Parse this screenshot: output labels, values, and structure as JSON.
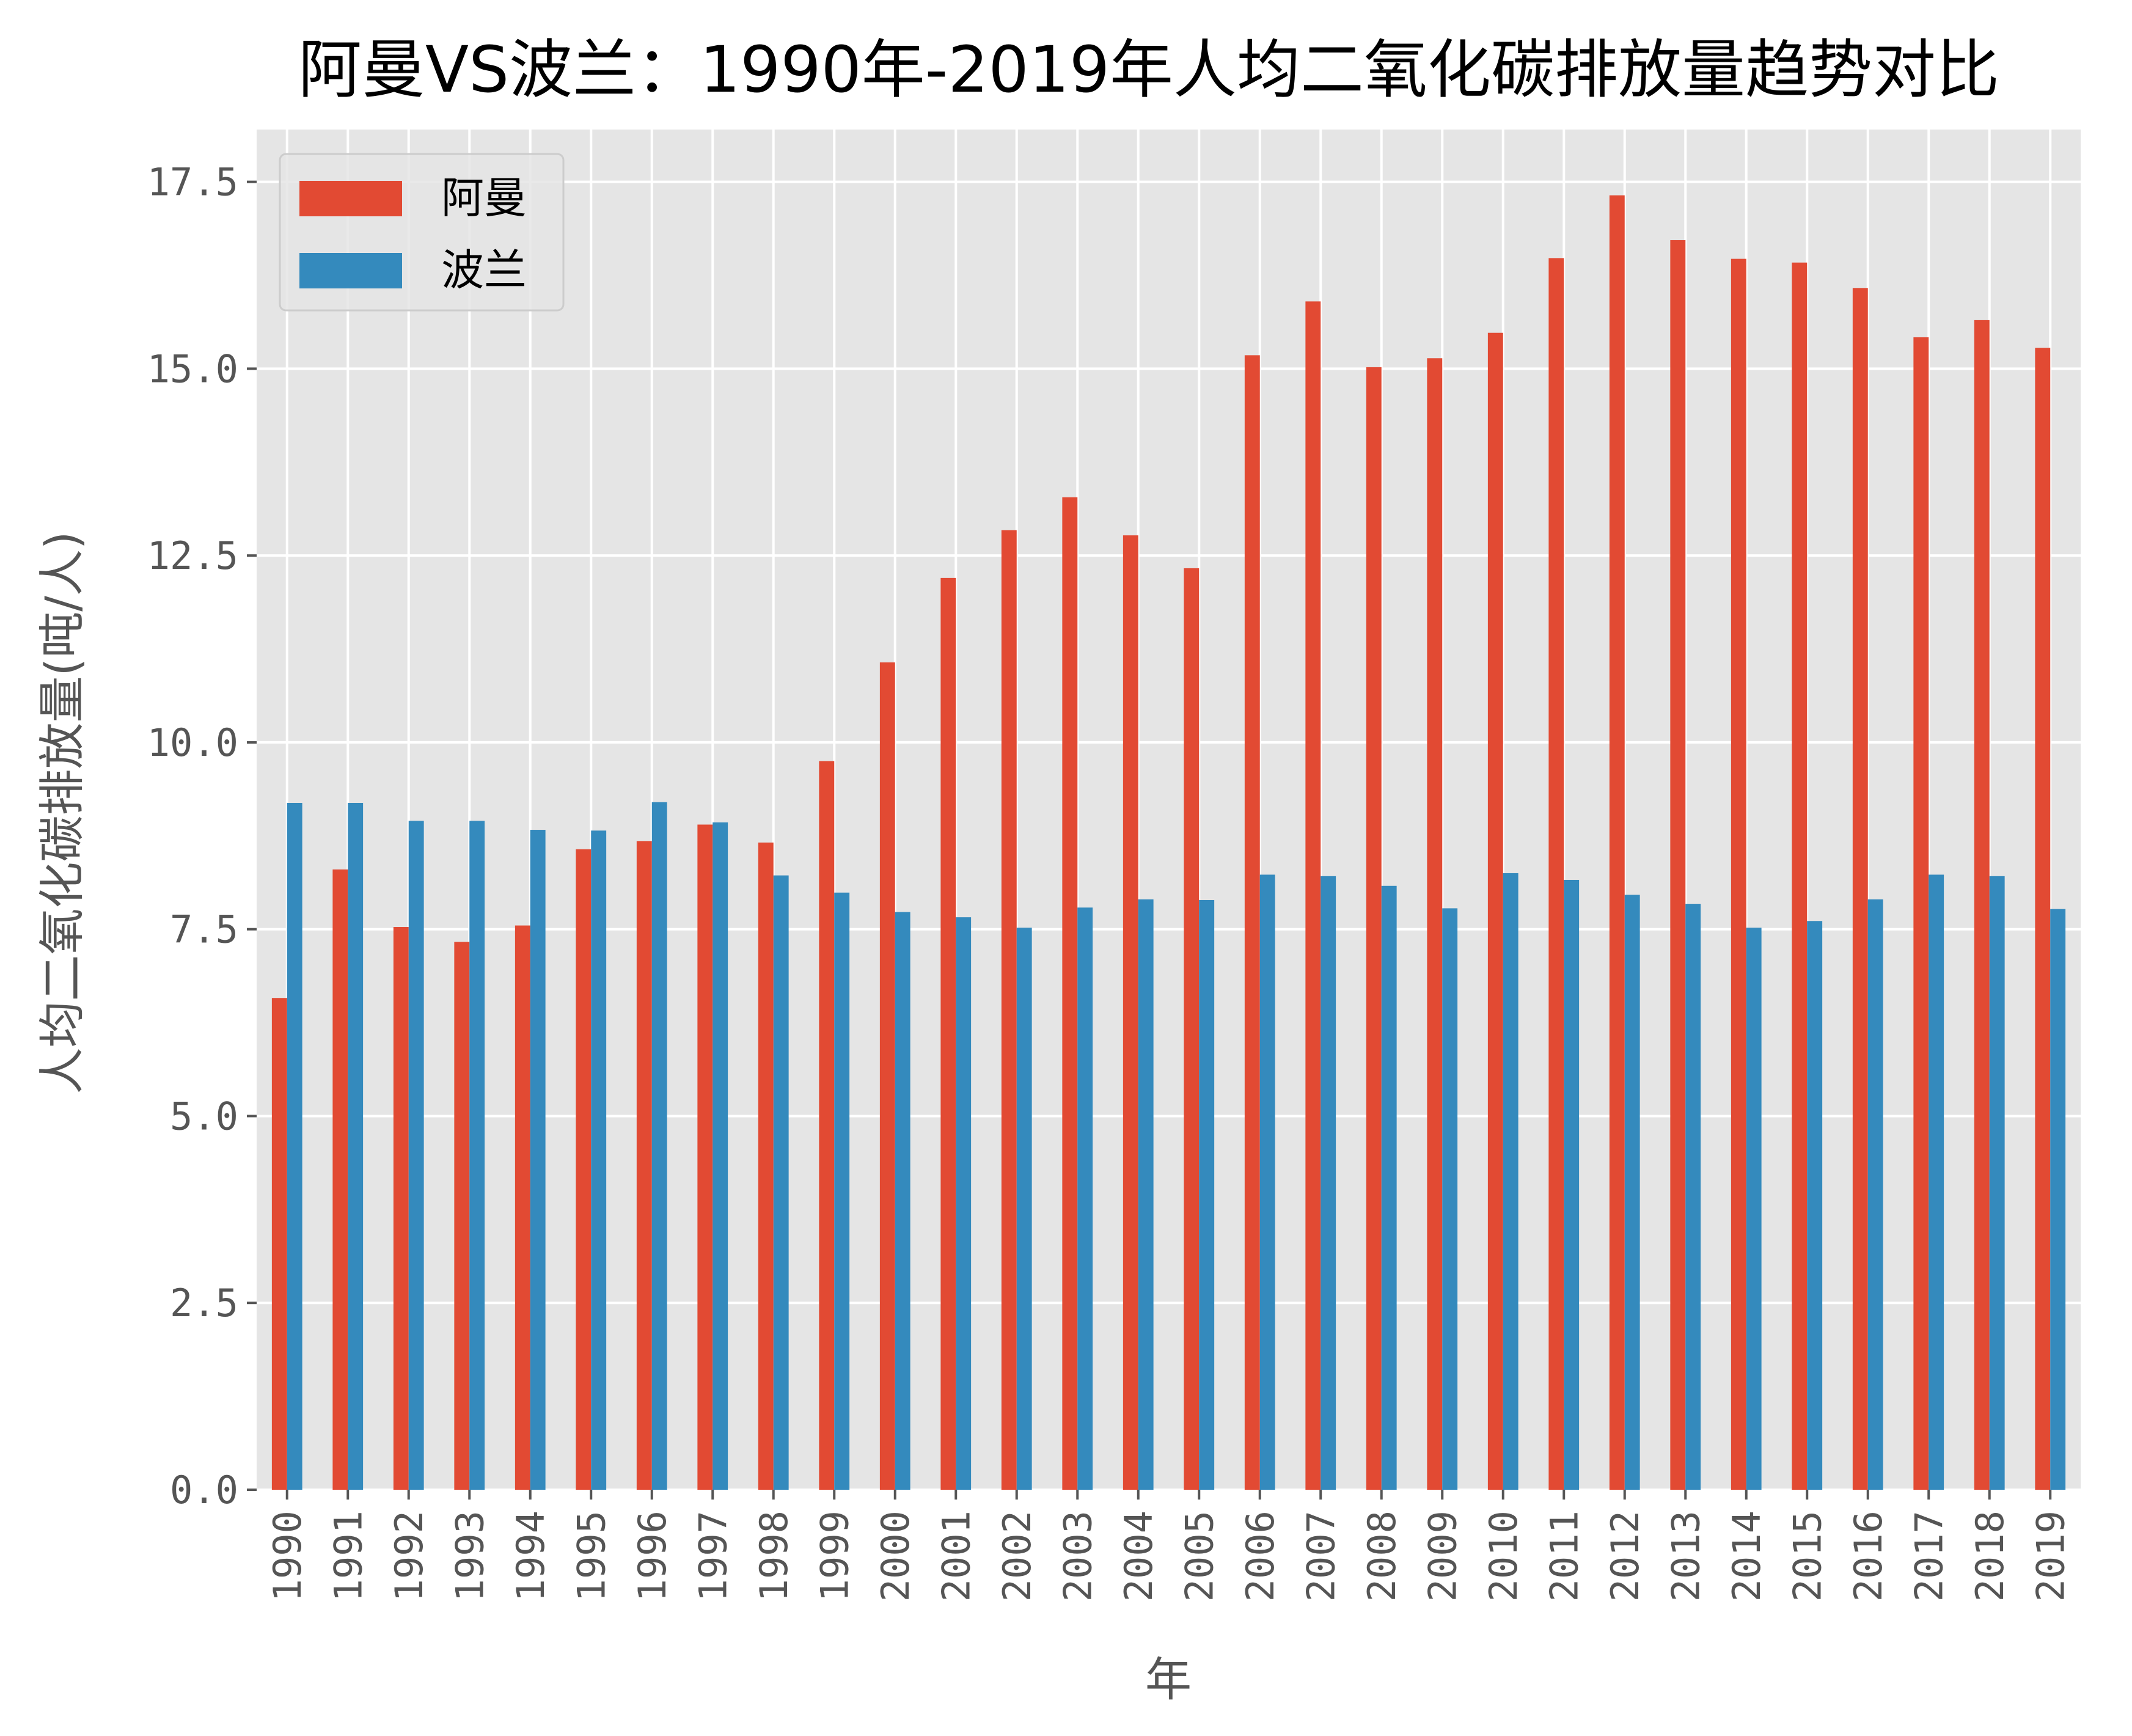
{
  "chart_data": {
    "type": "bar",
    "title": "阿曼VS波兰：1990年-2019年人均二氧化碳排放量趋势对比",
    "xlabel": "年",
    "ylabel": "人均二氧化碳排放量(吨/人)",
    "ylim": [
      0,
      18.2
    ],
    "yticks": [
      "0.0",
      "2.5",
      "5.0",
      "7.5",
      "10.0",
      "12.5",
      "15.0",
      "17.5"
    ],
    "ytick_values": [
      0,
      2.5,
      5,
      7.5,
      10,
      12.5,
      15,
      17.5
    ],
    "grid": true,
    "legend_position": "top-left",
    "categories": [
      "1990",
      "1991",
      "1992",
      "1993",
      "1994",
      "1995",
      "1996",
      "1997",
      "1998",
      "1999",
      "2000",
      "2001",
      "2002",
      "2003",
      "2004",
      "2005",
      "2006",
      "2007",
      "2008",
      "2009",
      "2010",
      "2011",
      "2012",
      "2013",
      "2014",
      "2015",
      "2016",
      "2017",
      "2018",
      "2019"
    ],
    "series": [
      {
        "name": "阿曼",
        "color": "#E24A33",
        "values": [
          6.58,
          8.3,
          7.53,
          7.33,
          7.55,
          8.57,
          8.68,
          8.9,
          8.66,
          9.75,
          11.07,
          12.2,
          12.84,
          13.28,
          12.77,
          12.33,
          15.18,
          15.9,
          15.02,
          15.14,
          15.48,
          16.48,
          17.32,
          16.72,
          16.47,
          16.42,
          16.08,
          15.42,
          15.65,
          15.28
        ]
      },
      {
        "name": "波兰",
        "color": "#348ABD",
        "values": [
          9.19,
          9.19,
          8.95,
          8.95,
          8.83,
          8.82,
          9.2,
          8.93,
          8.22,
          7.99,
          7.73,
          7.66,
          7.52,
          7.79,
          7.9,
          7.89,
          8.23,
          8.21,
          8.08,
          7.78,
          8.25,
          8.16,
          7.96,
          7.84,
          7.52,
          7.61,
          7.9,
          8.23,
          8.21,
          7.77
        ]
      }
    ]
  }
}
